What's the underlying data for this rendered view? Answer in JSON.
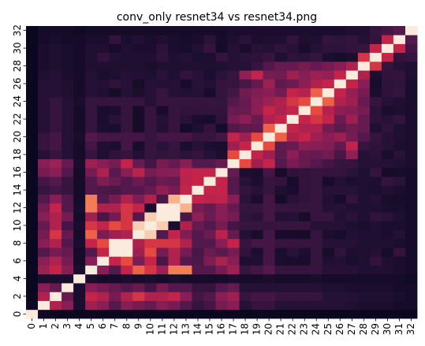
{
  "chart_data": {
    "type": "heatmap",
    "title": "conv_only resnet34 vs resnet34.png",
    "x_labels": [
      "0",
      "1",
      "2",
      "3",
      "4",
      "5",
      "6",
      "7",
      "8",
      "9",
      "10",
      "11",
      "12",
      "13",
      "14",
      "15",
      "16",
      "17",
      "18",
      "19",
      "20",
      "21",
      "22",
      "23",
      "24",
      "25",
      "26",
      "27",
      "28",
      "29",
      "30",
      "31",
      "32"
    ],
    "y_labels": [
      "0",
      "2",
      "4",
      "6",
      "8",
      "10",
      "12",
      "14",
      "16",
      "18",
      "20",
      "22",
      "24",
      "26",
      "28",
      "30",
      "32"
    ],
    "rows": 33,
    "cols": 33,
    "value_range": [
      0,
      1
    ],
    "colormap": "rocket",
    "colorbar": false,
    "grid": false,
    "diagonal_value": 1.0,
    "matrix_rows": {
      "0": [
        1.0,
        0.05,
        0.04,
        0.03,
        0.03,
        0.04,
        0.03,
        0.03,
        0.03,
        0.04,
        0.03,
        0.03,
        0.03,
        0.03,
        0.03,
        0.03,
        0.03,
        0.03,
        0.03,
        0.03,
        0.03,
        0.03,
        0.03,
        0.03,
        0.03,
        0.03,
        0.03,
        0.03,
        0.03,
        0.03,
        0.03,
        0.03,
        0.03
      ],
      "1": [
        0.05,
        1.0,
        0.55,
        0.45,
        0.1,
        0.5,
        0.45,
        0.3,
        0.45,
        0.4,
        0.15,
        0.45,
        0.35,
        0.3,
        0.2,
        0.25,
        0.4,
        0.5,
        0.15,
        0.2,
        0.15,
        0.15,
        0.15,
        0.15,
        0.15,
        0.15,
        0.15,
        0.12,
        0.12,
        0.1,
        0.1,
        0.08,
        0.08
      ],
      "2": [
        0.04,
        0.55,
        1.0,
        0.35,
        0.1,
        0.6,
        0.55,
        0.4,
        0.55,
        0.65,
        0.2,
        0.55,
        0.4,
        0.45,
        0.25,
        0.3,
        0.45,
        0.55,
        0.2,
        0.25,
        0.2,
        0.2,
        0.2,
        0.2,
        0.2,
        0.15,
        0.15,
        0.15,
        0.15,
        0.12,
        0.12,
        0.1,
        0.1
      ],
      "3": [
        0.03,
        0.45,
        0.35,
        1.0,
        0.1,
        0.45,
        0.4,
        0.35,
        0.3,
        0.35,
        0.15,
        0.4,
        0.35,
        0.3,
        0.2,
        0.2,
        0.3,
        0.35,
        0.15,
        0.15,
        0.15,
        0.15,
        0.15,
        0.15,
        0.12,
        0.12,
        0.12,
        0.1,
        0.1,
        0.1,
        0.1,
        0.08,
        0.08
      ],
      "5": [
        0.04,
        0.5,
        0.6,
        0.45,
        0.1,
        1.0,
        0.45,
        0.3,
        0.6,
        0.75,
        0.2,
        0.5,
        0.35,
        0.8,
        0.3,
        0.3,
        0.4,
        0.5,
        0.2,
        0.25,
        0.2,
        0.2,
        0.2,
        0.2,
        0.2,
        0.15,
        0.15,
        0.15,
        0.15,
        0.12,
        0.12,
        0.1,
        0.1
      ],
      "8": [
        0.03,
        0.45,
        0.55,
        0.3,
        0.1,
        0.6,
        0.7,
        1.0,
        1.0,
        0.55,
        0.2,
        0.65,
        0.4,
        0.55,
        0.3,
        0.3,
        0.45,
        0.5,
        0.2,
        0.25,
        0.2,
        0.2,
        0.2,
        0.2,
        0.2,
        0.15,
        0.15,
        0.15,
        0.15,
        0.12,
        0.12,
        0.1,
        0.1
      ],
      "10": [
        0.03,
        0.35,
        0.55,
        0.25,
        0.1,
        0.65,
        0.6,
        0.7,
        0.65,
        0.95,
        1.0,
        0.95,
        0.7,
        0.55,
        0.35,
        0.3,
        0.4,
        0.45,
        0.2,
        0.2,
        0.2,
        0.2,
        0.2,
        0.2,
        0.15,
        0.15,
        0.15,
        0.12,
        0.12,
        0.12,
        0.1,
        0.1,
        0.1
      ],
      "12": [
        0.03,
        0.4,
        0.6,
        0.3,
        0.1,
        0.8,
        0.55,
        0.55,
        0.65,
        0.6,
        0.1,
        1.0,
        1.0,
        0.9,
        0.4,
        0.35,
        0.45,
        0.5,
        0.2,
        0.2,
        0.2,
        0.2,
        0.2,
        0.2,
        0.15,
        0.15,
        0.15,
        0.12,
        0.12,
        0.12,
        0.1,
        0.1,
        0.1
      ],
      "17": [
        0.03,
        0.45,
        0.5,
        0.35,
        0.1,
        0.5,
        0.45,
        0.4,
        0.6,
        0.35,
        0.25,
        0.4,
        0.35,
        0.45,
        0.3,
        0.3,
        0.35,
        1.0,
        0.7,
        0.5,
        0.45,
        0.3,
        0.4,
        0.35,
        0.3,
        0.25,
        0.2,
        0.2,
        0.2,
        0.15,
        0.15,
        0.12,
        0.12
      ],
      "20": [
        0.03,
        0.2,
        0.25,
        0.15,
        0.1,
        0.3,
        0.25,
        0.25,
        0.25,
        0.25,
        0.2,
        0.25,
        0.25,
        0.25,
        0.2,
        0.2,
        0.25,
        0.6,
        0.5,
        0.7,
        1.0,
        0.75,
        0.55,
        0.6,
        0.5,
        0.45,
        0.5,
        0.4,
        0.4,
        0.2,
        0.15,
        0.12,
        0.12
      ],
      "24": [
        0.03,
        0.15,
        0.2,
        0.15,
        0.1,
        0.2,
        0.2,
        0.2,
        0.2,
        0.2,
        0.15,
        0.2,
        0.2,
        0.2,
        0.2,
        0.2,
        0.2,
        0.3,
        0.35,
        0.45,
        0.5,
        0.55,
        0.65,
        0.7,
        1.0,
        0.75,
        0.55,
        0.5,
        0.4,
        0.2,
        0.15,
        0.12,
        0.12
      ],
      "28": [
        0.03,
        0.1,
        0.12,
        0.1,
        0.08,
        0.12,
        0.12,
        0.12,
        0.12,
        0.12,
        0.1,
        0.12,
        0.12,
        0.12,
        0.12,
        0.12,
        0.12,
        0.15,
        0.15,
        0.2,
        0.3,
        0.35,
        0.35,
        0.4,
        0.35,
        0.4,
        0.45,
        0.55,
        1.0,
        0.65,
        0.2,
        0.15,
        0.12
      ],
      "32": [
        0.03,
        0.08,
        0.08,
        0.08,
        0.06,
        0.08,
        0.08,
        0.08,
        0.08,
        0.08,
        0.08,
        0.08,
        0.08,
        0.08,
        0.08,
        0.08,
        0.08,
        0.1,
        0.1,
        0.1,
        0.1,
        0.1,
        0.1,
        0.1,
        0.1,
        0.1,
        0.1,
        0.12,
        0.12,
        0.2,
        0.25,
        0.3,
        1.0
      ]
    }
  }
}
